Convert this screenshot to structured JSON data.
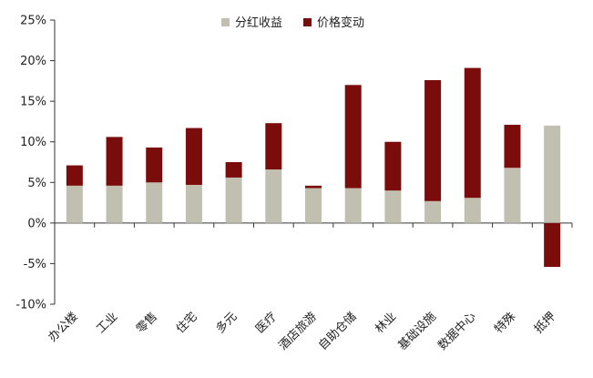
{
  "chart_data": {
    "type": "bar",
    "stacked": true,
    "categories": [
      "办公楼",
      "工业",
      "零售",
      "住宅",
      "多元",
      "医疗",
      "酒店旅游",
      "自助仓储",
      "林业",
      "基础设施",
      "数据中心",
      "特殊",
      "抵押"
    ],
    "series": [
      {
        "name": "分红收益",
        "color": "#c1bfb0",
        "values": [
          4.6,
          4.6,
          5.0,
          4.7,
          5.6,
          6.6,
          4.3,
          4.3,
          4.0,
          2.7,
          3.1,
          6.8,
          12.0
        ]
      },
      {
        "name": "价格变动",
        "color": "#7a0c0c",
        "values": [
          2.5,
          6.0,
          4.3,
          7.0,
          1.9,
          5.7,
          0.3,
          12.7,
          6.0,
          14.9,
          16.0,
          5.3,
          -5.4
        ]
      }
    ],
    "yticks": [
      "-10%",
      "-5%",
      "0%",
      "5%",
      "10%",
      "15%",
      "20%",
      "25%"
    ],
    "ylim": [
      -10,
      25
    ],
    "legend_position": "top-center",
    "grid": false
  }
}
